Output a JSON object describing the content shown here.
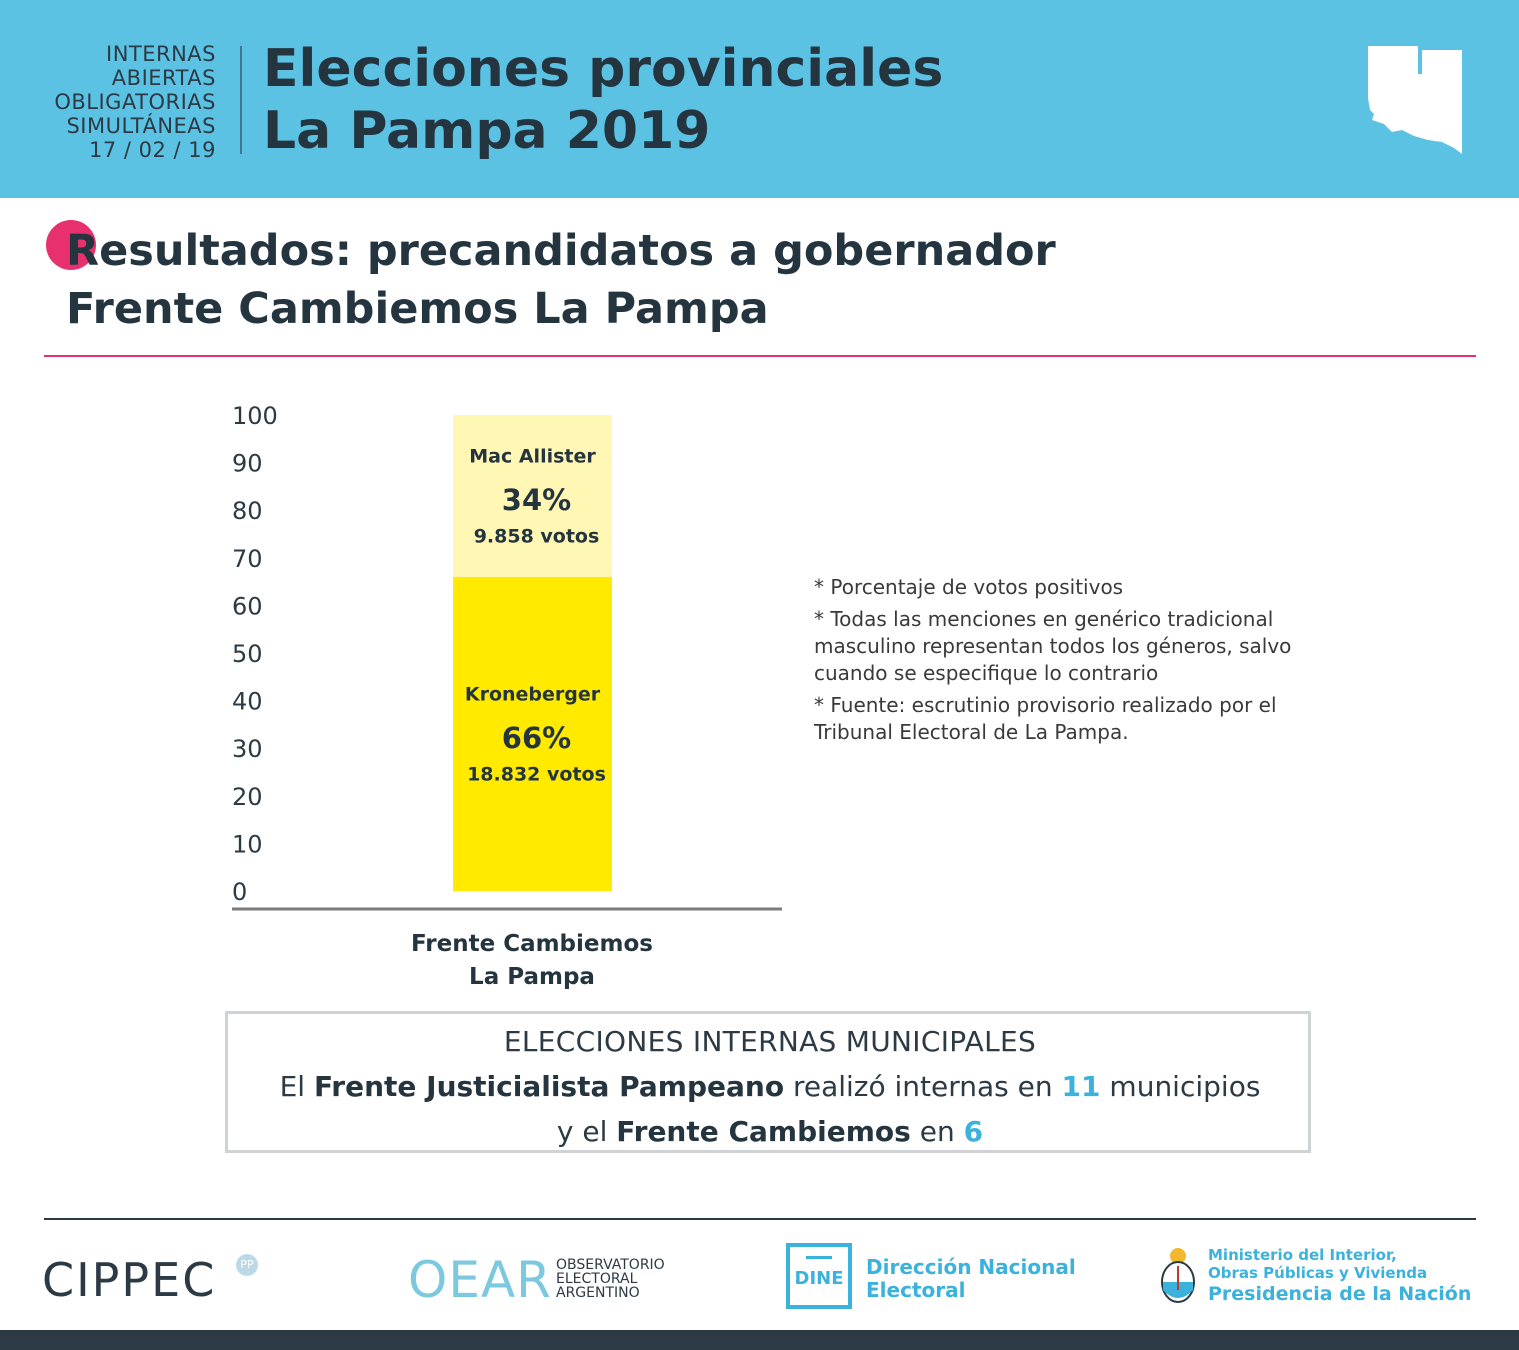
{
  "header": {
    "kicker_lines": [
      "INTERNAS",
      "ABIERTAS",
      "OBLIGATORIAS",
      "SIMULTÁNEAS",
      "17 / 02 / 19"
    ],
    "title_line1": "Elecciones provinciales",
    "title_line2": "La Pampa 2019",
    "band_color": "#5bc2e4"
  },
  "section": {
    "title_line1": "Resultados: precandidatos a gobernador",
    "title_line2": "Frente Cambiemos La Pampa",
    "accent_color": "#e8306e"
  },
  "chart_data": {
    "type": "bar",
    "stacked": true,
    "categories": [
      "Frente Cambiemos La Pampa"
    ],
    "category_label_lines": [
      "Frente Cambiemos",
      "La Pampa"
    ],
    "ylim": [
      0,
      100
    ],
    "yticks": [
      "0",
      "10",
      "20",
      "30",
      "40",
      "50",
      "60",
      "70",
      "80",
      "90",
      "100"
    ],
    "series": [
      {
        "name": "Kroneberger",
        "values": [
          66
        ],
        "pct_label": "66%",
        "votes_label": "18.832 votos",
        "color": "#ffea00"
      },
      {
        "name": "Mac Allister",
        "values": [
          34
        ],
        "pct_label": "34%",
        "votes_label": "9.858 votos",
        "color": "#fff7b3"
      }
    ],
    "grid": false
  },
  "notes": [
    "* Porcentaje de votos positivos",
    "* Todas las menciones en genérico tradicional masculino representan todos los géneros, salvo cuando se especifique lo contrario",
    "* Fuente: escrutinio provisorio realizado por el Tribunal Electoral de La Pampa."
  ],
  "municipal": {
    "heading": "ELECCIONES INTERNAS MUNICIPALES",
    "line1_pre": "El ",
    "line1_party": "Frente Justicialista Pampeano",
    "line1_mid": " realizó internas en ",
    "line1_count": "11",
    "line1_post": " municipios",
    "line2_pre": "y el ",
    "line2_party": "Frente Cambiemos",
    "line2_mid": " en ",
    "line2_count": "6"
  },
  "footer": {
    "cippec": "CIPPEC",
    "cippec_badge": "PP",
    "oear_word": "OEAR",
    "oear_sub": [
      "OBSERVATORIO",
      "ELECTORAL",
      "ARGENTINO"
    ],
    "dine_abbr": "DINE",
    "dine_name_line1": "Dirección Nacional",
    "dine_name_line2": "Electoral",
    "ministry_line1": "Ministerio del Interior,",
    "ministry_line2": "Obras Públicas y Vivienda",
    "ministry_line3": "Presidencia de la Nación"
  }
}
